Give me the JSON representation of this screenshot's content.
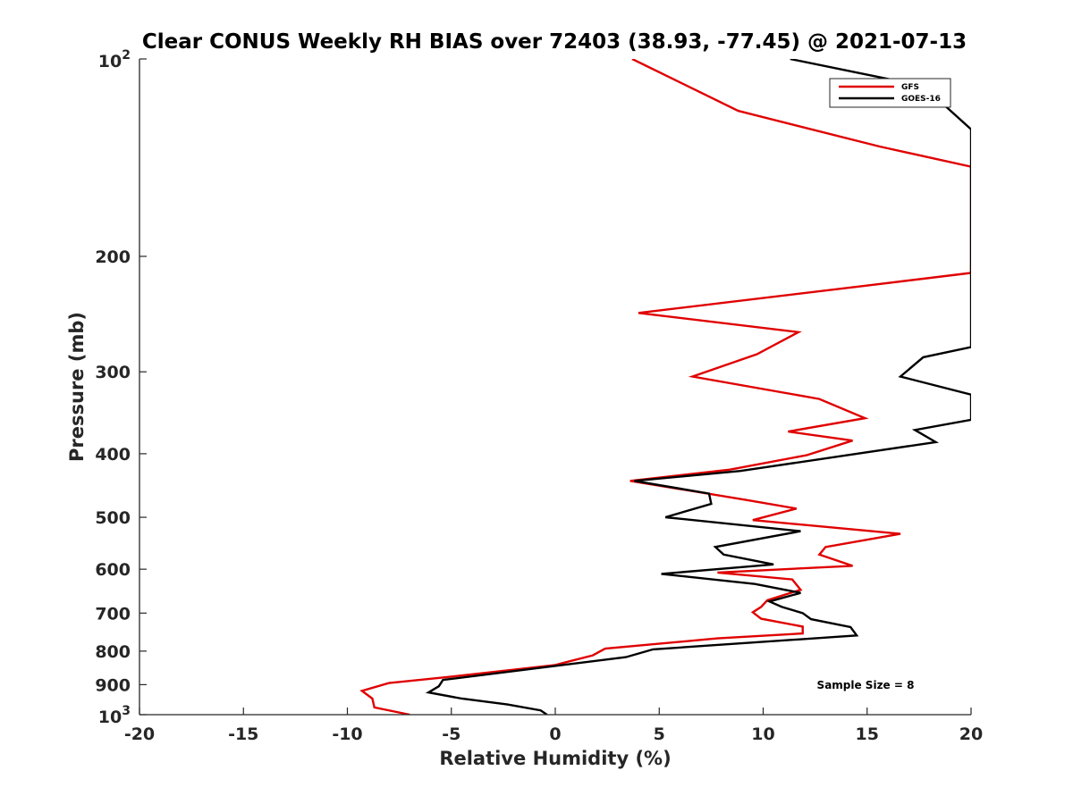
{
  "chart_data": {
    "type": "line",
    "title": "Clear CONUS Weekly RH BIAS over 72403 (38.93, -77.45) @ 2021-07-13",
    "xlabel": "Relative Humidity (%)",
    "ylabel": "Pressure (mb)",
    "xlim": [
      -20,
      20
    ],
    "ylim": [
      100,
      1000
    ],
    "y_scale": "log",
    "y_reversed": true,
    "grid": false,
    "x_ticks": [
      -20,
      -15,
      -10,
      -5,
      0,
      5,
      10,
      15,
      20
    ],
    "x_tick_labels": [
      "-20",
      "-15",
      "-10",
      "-5",
      "0",
      "5",
      "10",
      "15",
      "20"
    ],
    "y_ticks": [
      {
        "value": 100,
        "base": "10",
        "exp": "2"
      },
      {
        "value": 200,
        "label": "200"
      },
      {
        "value": 300,
        "label": "300"
      },
      {
        "value": 400,
        "label": "400"
      },
      {
        "value": 500,
        "label": "500"
      },
      {
        "value": 600,
        "label": "600"
      },
      {
        "value": 700,
        "label": "700"
      },
      {
        "value": 800,
        "label": "800"
      },
      {
        "value": 900,
        "label": "900"
      },
      {
        "value": 1000,
        "base": "10",
        "exp": "3"
      }
    ],
    "legend_position": "top-right",
    "annotation": "Sample Size = 8",
    "series": [
      {
        "name": "GFS",
        "color": "#e00000",
        "points": [
          [
            3.7,
            100
          ],
          [
            8.8,
            120
          ],
          [
            15.6,
            136
          ],
          [
            20.0,
            146
          ],
          [
            20.0,
            212
          ],
          [
            14.8,
            222
          ],
          [
            4.0,
            244
          ],
          [
            11.7,
            261
          ],
          [
            9.7,
            282
          ],
          [
            6.6,
            305
          ],
          [
            12.7,
            330
          ],
          [
            14.9,
            353
          ],
          [
            11.2,
            370
          ],
          [
            14.3,
            382
          ],
          [
            12.1,
            402
          ],
          [
            8.4,
            423
          ],
          [
            3.6,
            440
          ],
          [
            9.1,
            470
          ],
          [
            11.6,
            485
          ],
          [
            9.5,
            505
          ],
          [
            16.6,
            530
          ],
          [
            13.0,
            555
          ],
          [
            12.7,
            570
          ],
          [
            14.3,
            593
          ],
          [
            7.8,
            607
          ],
          [
            11.4,
            622
          ],
          [
            11.8,
            645
          ],
          [
            10.2,
            669
          ],
          [
            9.9,
            685
          ],
          [
            9.5,
            698
          ],
          [
            9.9,
            714
          ],
          [
            11.9,
            734
          ],
          [
            11.9,
            752
          ],
          [
            7.8,
            765
          ],
          [
            2.4,
            793
          ],
          [
            1.8,
            812
          ],
          [
            0.0,
            840
          ],
          [
            -5.0,
            875
          ],
          [
            -8.0,
            895
          ],
          [
            -9.3,
            920
          ],
          [
            -8.8,
            945
          ],
          [
            -8.7,
            975
          ],
          [
            -7.0,
            1000
          ]
        ]
      },
      {
        "name": "GOES-16",
        "color": "#000000",
        "points": [
          [
            11.3,
            100
          ],
          [
            17.7,
            110
          ],
          [
            20.0,
            128
          ],
          [
            20.0,
            275
          ],
          [
            17.7,
            285
          ],
          [
            16.6,
            305
          ],
          [
            20.0,
            325
          ],
          [
            20.0,
            355
          ],
          [
            17.3,
            368
          ],
          [
            18.3,
            384
          ],
          [
            8.9,
            425
          ],
          [
            3.8,
            440
          ],
          [
            7.4,
            460
          ],
          [
            7.5,
            477
          ],
          [
            5.3,
            500
          ],
          [
            11.8,
            525
          ],
          [
            7.7,
            555
          ],
          [
            8.1,
            570
          ],
          [
            10.5,
            590
          ],
          [
            5.1,
            610
          ],
          [
            9.6,
            632
          ],
          [
            11.8,
            652
          ],
          [
            10.3,
            672
          ],
          [
            10.9,
            685
          ],
          [
            11.9,
            700
          ],
          [
            12.3,
            715
          ],
          [
            14.2,
            735
          ],
          [
            14.5,
            757
          ],
          [
            4.7,
            795
          ],
          [
            3.4,
            817
          ],
          [
            -5.4,
            885
          ],
          [
            -5.6,
            905
          ],
          [
            -6.1,
            925
          ],
          [
            -4.5,
            945
          ],
          [
            -2.3,
            965
          ],
          [
            -0.7,
            985
          ],
          [
            -0.4,
            1000
          ]
        ]
      }
    ]
  }
}
